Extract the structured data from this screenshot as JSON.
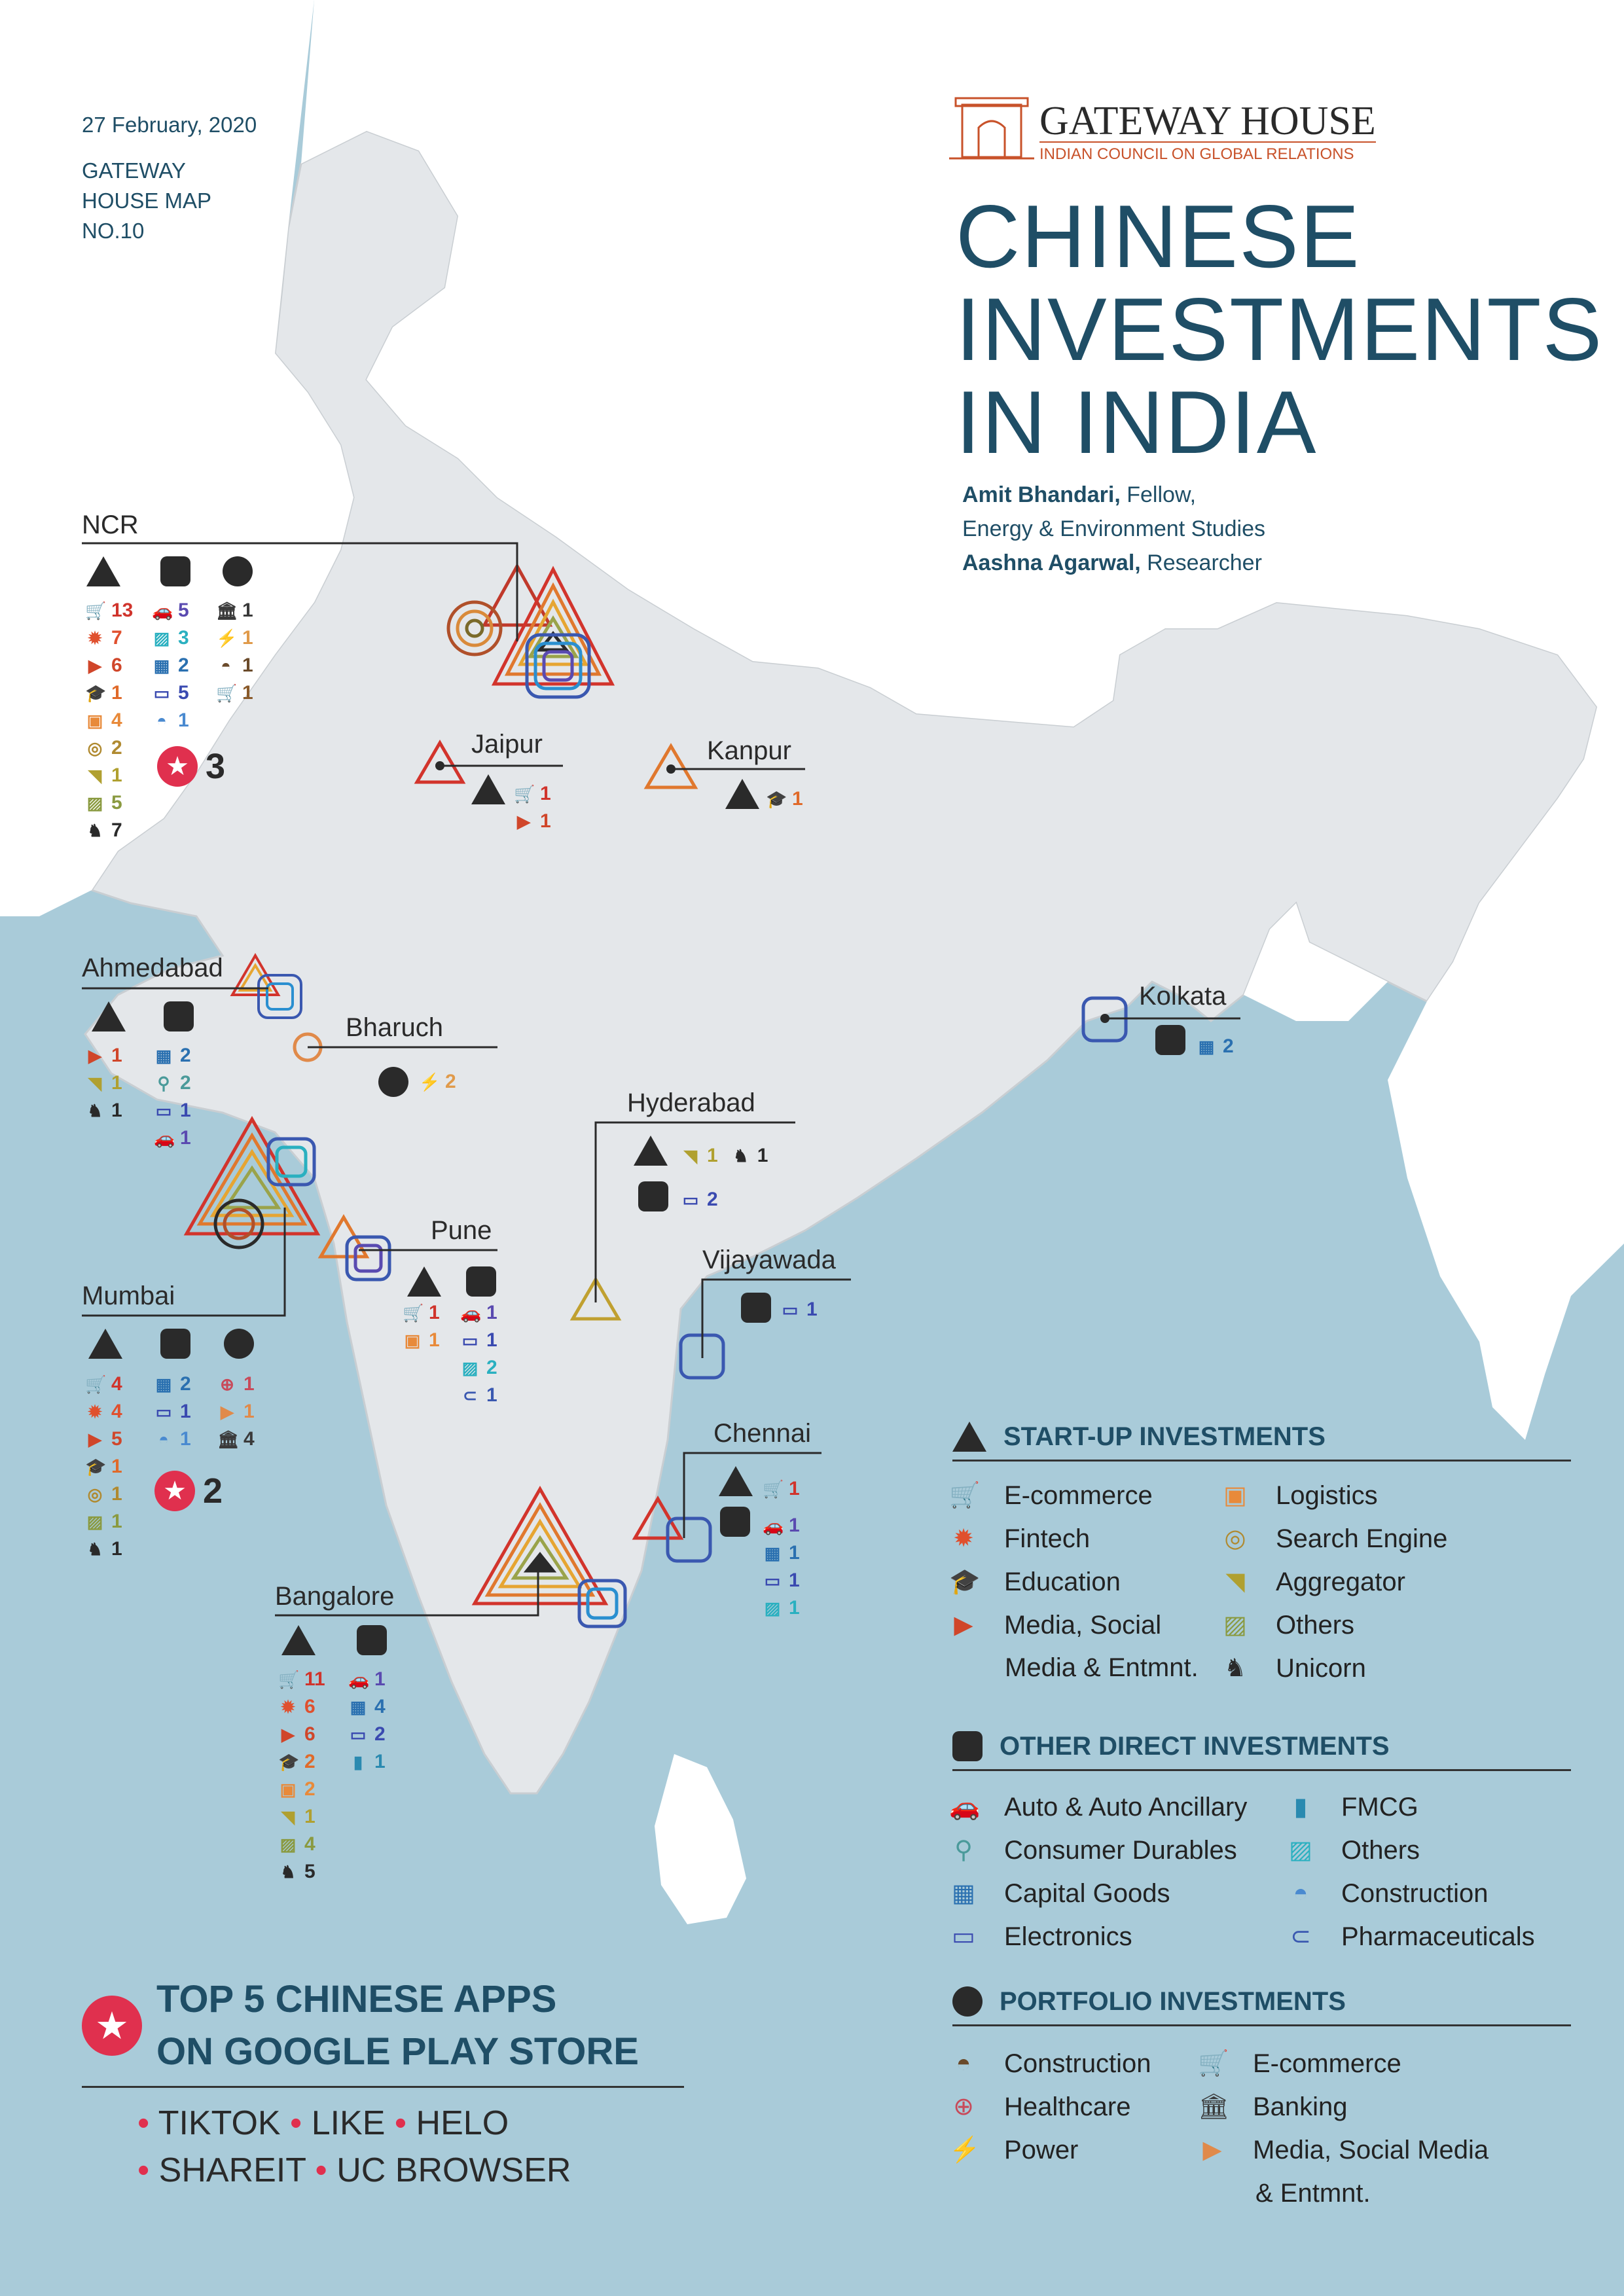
{
  "meta": {
    "date": "27 February, 2020",
    "map_no_lines": [
      "GATEWAY",
      "HOUSE MAP",
      "NO.10"
    ]
  },
  "logo": {
    "name": "GATEWAY HOUSE",
    "tagline": "INDIAN COUNCIL ON GLOBAL RELATIONS",
    "color": "#c8522a"
  },
  "title": {
    "lines": [
      "CHINESE",
      "INVESTMENTS",
      "IN INDIA"
    ]
  },
  "authors": [
    {
      "name": "Amit Bhandari,",
      "role": " Fellow,",
      "role2": "Energy & Environment Studies"
    },
    {
      "name": "Aashna Agarwal,",
      "role": " Researcher"
    }
  ],
  "colors": {
    "sea": "#a9cbd9",
    "land": "#e4e7ea",
    "title": "#1f4e66",
    "star": "#e0304e"
  },
  "cities": {
    "ncr": {
      "name": "NCR",
      "startup": [
        {
          "icon": "ecommerce",
          "n": "13"
        },
        {
          "icon": "fintech",
          "n": "7"
        },
        {
          "icon": "media",
          "n": "6"
        },
        {
          "icon": "education",
          "n": "1"
        },
        {
          "icon": "logistics",
          "n": "4"
        },
        {
          "icon": "search",
          "n": "2"
        },
        {
          "icon": "aggregator",
          "n": "1"
        },
        {
          "icon": "others",
          "n": "5"
        },
        {
          "icon": "unicorn",
          "n": "7"
        }
      ],
      "direct": [
        {
          "icon": "auto",
          "n": "5"
        },
        {
          "icon": "others-d",
          "n": "3"
        },
        {
          "icon": "capital",
          "n": "2"
        },
        {
          "icon": "electronics",
          "n": "5"
        },
        {
          "icon": "construction-d",
          "n": "1"
        }
      ],
      "portfolio": [
        {
          "icon": "banking",
          "n": "1"
        },
        {
          "icon": "power",
          "n": "1"
        },
        {
          "icon": "construction-p",
          "n": "1"
        },
        {
          "icon": "ecommerce-p",
          "n": "1"
        }
      ],
      "apps": "3"
    },
    "jaipur": {
      "name": "Jaipur",
      "startup": [
        {
          "icon": "ecommerce",
          "n": "1"
        },
        {
          "icon": "media",
          "n": "1"
        }
      ]
    },
    "kanpur": {
      "name": "Kanpur",
      "startup": [
        {
          "icon": "education",
          "n": "1"
        }
      ]
    },
    "ahmedabad": {
      "name": "Ahmedabad",
      "startup": [
        {
          "icon": "media",
          "n": "1"
        },
        {
          "icon": "aggregator",
          "n": "1"
        },
        {
          "icon": "unicorn",
          "n": "1"
        }
      ],
      "direct": [
        {
          "icon": "capital",
          "n": "2"
        },
        {
          "icon": "consumer",
          "n": "2"
        },
        {
          "icon": "electronics",
          "n": "1"
        },
        {
          "icon": "auto",
          "n": "1"
        }
      ]
    },
    "bharuch": {
      "name": "Bharuch",
      "portfolio": [
        {
          "icon": "power",
          "n": "2"
        }
      ]
    },
    "kolkata": {
      "name": "Kolkata",
      "direct": [
        {
          "icon": "capital",
          "n": "2"
        }
      ]
    },
    "hyderabad": {
      "name": "Hyderabad",
      "startup": [
        {
          "icon": "aggregator",
          "n": "1"
        },
        {
          "icon": "unicorn",
          "n": "1"
        }
      ],
      "direct": [
        {
          "icon": "electronics",
          "n": "2"
        }
      ]
    },
    "pune": {
      "name": "Pune",
      "startup": [
        {
          "icon": "ecommerce",
          "n": "1"
        },
        {
          "icon": "logistics",
          "n": "1"
        }
      ],
      "direct": [
        {
          "icon": "auto",
          "n": "1"
        },
        {
          "icon": "electronics",
          "n": "1"
        },
        {
          "icon": "others-d",
          "n": "2"
        },
        {
          "icon": "pharma",
          "n": "1"
        }
      ]
    },
    "vijayawada": {
      "name": "Vijayawada",
      "direct": [
        {
          "icon": "electronics",
          "n": "1"
        }
      ]
    },
    "mumbai": {
      "name": "Mumbai",
      "startup": [
        {
          "icon": "ecommerce",
          "n": "4"
        },
        {
          "icon": "fintech",
          "n": "4"
        },
        {
          "icon": "media",
          "n": "5"
        },
        {
          "icon": "education",
          "n": "1"
        },
        {
          "icon": "search",
          "n": "1"
        },
        {
          "icon": "others",
          "n": "1"
        },
        {
          "icon": "unicorn",
          "n": "1"
        }
      ],
      "direct": [
        {
          "icon": "capital",
          "n": "2"
        },
        {
          "icon": "electronics",
          "n": "1"
        },
        {
          "icon": "construction-d",
          "n": "1"
        }
      ],
      "portfolio": [
        {
          "icon": "healthcare",
          "n": "1"
        },
        {
          "icon": "media-p",
          "n": "1"
        },
        {
          "icon": "banking",
          "n": "4"
        }
      ],
      "apps": "2"
    },
    "chennai": {
      "name": "Chennai",
      "startup": [
        {
          "icon": "ecommerce",
          "n": "1"
        }
      ],
      "direct": [
        {
          "icon": "auto",
          "n": "1"
        },
        {
          "icon": "capital",
          "n": "1"
        },
        {
          "icon": "electronics",
          "n": "1"
        },
        {
          "icon": "others-d",
          "n": "1"
        }
      ]
    },
    "bangalore": {
      "name": "Bangalore",
      "startup": [
        {
          "icon": "ecommerce",
          "n": "11"
        },
        {
          "icon": "fintech",
          "n": "6"
        },
        {
          "icon": "media",
          "n": "6"
        },
        {
          "icon": "education",
          "n": "2"
        },
        {
          "icon": "logistics",
          "n": "2"
        },
        {
          "icon": "aggregator",
          "n": "1"
        },
        {
          "icon": "others",
          "n": "4"
        },
        {
          "icon": "unicorn",
          "n": "5"
        }
      ],
      "direct": [
        {
          "icon": "auto",
          "n": "1"
        },
        {
          "icon": "capital",
          "n": "4"
        },
        {
          "icon": "electronics",
          "n": "2"
        },
        {
          "icon": "fmcg",
          "n": "1"
        }
      ]
    }
  },
  "legend": {
    "startup": {
      "title": "START-UP INVESTMENTS",
      "col1": [
        {
          "icon": "ecommerce",
          "label": "E-commerce"
        },
        {
          "icon": "fintech",
          "label": "Fintech"
        },
        {
          "icon": "education",
          "label": "Education"
        },
        {
          "icon": "media",
          "label": "Media, Social"
        }
      ],
      "col1_extra": "Media & Entmnt.",
      "col2": [
        {
          "icon": "logistics",
          "label": "Logistics"
        },
        {
          "icon": "search",
          "label": "Search Engine"
        },
        {
          "icon": "aggregator",
          "label": "Aggregator"
        },
        {
          "icon": "others",
          "label": "Others"
        },
        {
          "icon": "unicorn",
          "label": "Unicorn"
        }
      ]
    },
    "direct": {
      "title": "OTHER DIRECT INVESTMENTS",
      "col1": [
        {
          "icon": "auto",
          "label": "Auto & Auto Ancillary"
        },
        {
          "icon": "consumer",
          "label": "Consumer Durables"
        },
        {
          "icon": "capital",
          "label": "Capital Goods"
        },
        {
          "icon": "electronics",
          "label": "Electronics"
        }
      ],
      "col2": [
        {
          "icon": "fmcg",
          "label": "FMCG"
        },
        {
          "icon": "others-d",
          "label": "Others"
        },
        {
          "icon": "construction-d",
          "label": "Construction"
        },
        {
          "icon": "pharma",
          "label": "Pharmaceuticals"
        }
      ]
    },
    "portfolio": {
      "title": "PORTFOLIO INVESTMENTS",
      "col1": [
        {
          "icon": "construction-p",
          "label": "Construction"
        },
        {
          "icon": "healthcare",
          "label": "Healthcare"
        },
        {
          "icon": "power",
          "label": "Power"
        }
      ],
      "col2": [
        {
          "icon": "ecommerce-p",
          "label": "E-commerce"
        },
        {
          "icon": "banking",
          "label": "Banking"
        },
        {
          "icon": "media-p",
          "label": "Media, Social Media"
        }
      ],
      "col2_extra": "& Entmnt."
    }
  },
  "apps": {
    "title_lines": [
      "TOP 5 CHINESE APPS",
      "ON GOOGLE PLAY STORE"
    ],
    "list_line1": [
      "TIKTOK",
      "LIKE",
      "HELO"
    ],
    "list_line2": [
      "SHAREIT",
      "UC BROWSER"
    ]
  }
}
